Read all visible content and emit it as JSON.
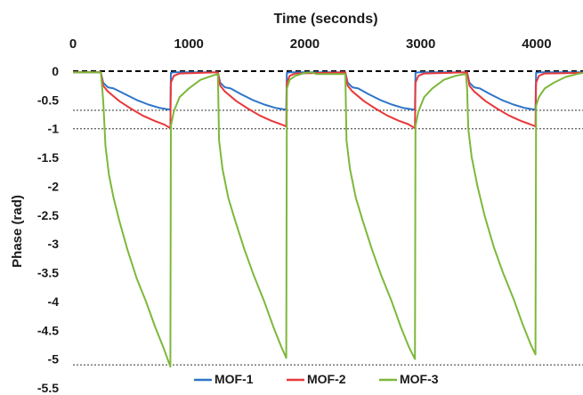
{
  "chart_data": {
    "type": "line",
    "title": "",
    "xlabel": "Time (seconds)",
    "ylabel": "Phase (rad)",
    "xlim": [
      0,
      4400
    ],
    "ylim": [
      -5.5,
      0
    ],
    "x_ticks": [
      0,
      1000,
      2000,
      3000,
      4000
    ],
    "x_tick_labels": [
      "0",
      "1000",
      "2000",
      "3000",
      "4000"
    ],
    "x_axis_position": "top",
    "y_ticks": [
      0,
      -0.5,
      -1,
      -1.5,
      -2,
      -2.5,
      -3,
      -3.5,
      -4,
      -4.5,
      -5,
      -5.5
    ],
    "y_tick_labels": [
      "0",
      "-0.5",
      "-1",
      "-1.5",
      "-2",
      "-2.5",
      "-3",
      "-3.5",
      "-4",
      "-4.5",
      "-5",
      "-5.5"
    ],
    "grid": false,
    "legend_position": "bottom",
    "reference_lines": [
      {
        "y": 0,
        "style": "dashed",
        "color": "#000000"
      },
      {
        "y": -0.68,
        "style": "dotted",
        "color": "#333333"
      },
      {
        "y": -1.0,
        "style": "dotted",
        "color": "#333333"
      },
      {
        "y": -5.1,
        "style": "dotted",
        "color": "#333333"
      }
    ],
    "series": [
      {
        "name": "MOF-1",
        "color": "#2e75c8",
        "points": [
          [
            0,
            -0.02
          ],
          [
            240,
            -0.02
          ],
          [
            260,
            -0.2
          ],
          [
            300,
            -0.28
          ],
          [
            350,
            -0.3
          ],
          [
            450,
            -0.4
          ],
          [
            550,
            -0.5
          ],
          [
            650,
            -0.58
          ],
          [
            750,
            -0.64
          ],
          [
            840,
            -0.67
          ],
          [
            845,
            -0.03
          ],
          [
            870,
            -0.02
          ],
          [
            1250,
            -0.02
          ],
          [
            1270,
            -0.2
          ],
          [
            1310,
            -0.28
          ],
          [
            1360,
            -0.3
          ],
          [
            1450,
            -0.4
          ],
          [
            1550,
            -0.5
          ],
          [
            1650,
            -0.58
          ],
          [
            1750,
            -0.64
          ],
          [
            1840,
            -0.67
          ],
          [
            1845,
            -0.03
          ],
          [
            1870,
            -0.02
          ],
          [
            2350,
            -0.02
          ],
          [
            2370,
            -0.2
          ],
          [
            2410,
            -0.28
          ],
          [
            2460,
            -0.3
          ],
          [
            2550,
            -0.4
          ],
          [
            2650,
            -0.5
          ],
          [
            2750,
            -0.58
          ],
          [
            2850,
            -0.64
          ],
          [
            2950,
            -0.67
          ],
          [
            2955,
            -0.03
          ],
          [
            2980,
            -0.02
          ],
          [
            3400,
            -0.02
          ],
          [
            3420,
            -0.2
          ],
          [
            3460,
            -0.28
          ],
          [
            3510,
            -0.3
          ],
          [
            3600,
            -0.4
          ],
          [
            3700,
            -0.5
          ],
          [
            3800,
            -0.58
          ],
          [
            3900,
            -0.64
          ],
          [
            3990,
            -0.67
          ],
          [
            3995,
            -0.03
          ],
          [
            4020,
            -0.02
          ],
          [
            4400,
            -0.02
          ]
        ]
      },
      {
        "name": "MOF-2",
        "color": "#e8383a",
        "points": [
          [
            0,
            -0.02
          ],
          [
            240,
            -0.02
          ],
          [
            260,
            -0.25
          ],
          [
            300,
            -0.35
          ],
          [
            400,
            -0.52
          ],
          [
            500,
            -0.65
          ],
          [
            600,
            -0.77
          ],
          [
            700,
            -0.86
          ],
          [
            790,
            -0.93
          ],
          [
            840,
            -0.99
          ],
          [
            845,
            -0.2
          ],
          [
            870,
            -0.08
          ],
          [
            920,
            -0.04
          ],
          [
            1250,
            -0.02
          ],
          [
            1270,
            -0.25
          ],
          [
            1310,
            -0.35
          ],
          [
            1410,
            -0.52
          ],
          [
            1510,
            -0.65
          ],
          [
            1610,
            -0.77
          ],
          [
            1710,
            -0.86
          ],
          [
            1790,
            -0.92
          ],
          [
            1840,
            -0.96
          ],
          [
            1845,
            -0.2
          ],
          [
            1870,
            -0.08
          ],
          [
            1920,
            -0.04
          ],
          [
            2350,
            -0.02
          ],
          [
            2370,
            -0.25
          ],
          [
            2410,
            -0.35
          ],
          [
            2510,
            -0.52
          ],
          [
            2610,
            -0.65
          ],
          [
            2710,
            -0.77
          ],
          [
            2810,
            -0.86
          ],
          [
            2890,
            -0.92
          ],
          [
            2950,
            -0.99
          ],
          [
            2955,
            -0.2
          ],
          [
            2980,
            -0.08
          ],
          [
            3030,
            -0.04
          ],
          [
            3400,
            -0.02
          ],
          [
            3420,
            -0.25
          ],
          [
            3460,
            -0.35
          ],
          [
            3560,
            -0.52
          ],
          [
            3660,
            -0.65
          ],
          [
            3760,
            -0.77
          ],
          [
            3860,
            -0.86
          ],
          [
            3940,
            -0.92
          ],
          [
            3990,
            -0.96
          ],
          [
            3995,
            -0.2
          ],
          [
            4020,
            -0.08
          ],
          [
            4070,
            -0.04
          ],
          [
            4400,
            -0.03
          ]
        ]
      },
      {
        "name": "MOF-3",
        "color": "#7db83a",
        "points": [
          [
            0,
            -0.02
          ],
          [
            240,
            -0.02
          ],
          [
            260,
            -0.5
          ],
          [
            280,
            -1.3
          ],
          [
            310,
            -1.8
          ],
          [
            350,
            -2.2
          ],
          [
            400,
            -2.6
          ],
          [
            470,
            -3.1
          ],
          [
            550,
            -3.6
          ],
          [
            630,
            -4.0
          ],
          [
            710,
            -4.45
          ],
          [
            780,
            -4.8
          ],
          [
            840,
            -5.13
          ],
          [
            845,
            -0.95
          ],
          [
            870,
            -0.7
          ],
          [
            920,
            -0.45
          ],
          [
            1000,
            -0.3
          ],
          [
            1100,
            -0.15
          ],
          [
            1200,
            -0.08
          ],
          [
            1250,
            -0.05
          ],
          [
            1260,
            -1.2
          ],
          [
            1290,
            -1.7
          ],
          [
            1340,
            -2.2
          ],
          [
            1400,
            -2.6
          ],
          [
            1480,
            -3.1
          ],
          [
            1560,
            -3.55
          ],
          [
            1650,
            -4.0
          ],
          [
            1730,
            -4.45
          ],
          [
            1800,
            -4.8
          ],
          [
            1840,
            -4.98
          ],
          [
            1845,
            -0.3
          ],
          [
            1870,
            -0.15
          ],
          [
            1920,
            -0.08
          ],
          [
            2000,
            -0.03
          ],
          [
            2060,
            -0.02
          ],
          [
            2100,
            -0.05
          ],
          [
            2350,
            -0.05
          ],
          [
            2360,
            -1.2
          ],
          [
            2390,
            -1.7
          ],
          [
            2440,
            -2.2
          ],
          [
            2500,
            -2.6
          ],
          [
            2580,
            -3.1
          ],
          [
            2660,
            -3.55
          ],
          [
            2750,
            -4.0
          ],
          [
            2830,
            -4.45
          ],
          [
            2900,
            -4.8
          ],
          [
            2950,
            -5.0
          ],
          [
            2955,
            -0.95
          ],
          [
            2980,
            -0.7
          ],
          [
            3030,
            -0.45
          ],
          [
            3100,
            -0.3
          ],
          [
            3200,
            -0.15
          ],
          [
            3300,
            -0.08
          ],
          [
            3390,
            -0.05
          ],
          [
            3400,
            -0.3
          ],
          [
            3410,
            -1.0
          ],
          [
            3440,
            -1.5
          ],
          [
            3490,
            -2.0
          ],
          [
            3550,
            -2.5
          ],
          [
            3630,
            -3.05
          ],
          [
            3710,
            -3.5
          ],
          [
            3800,
            -3.95
          ],
          [
            3880,
            -4.4
          ],
          [
            3950,
            -4.75
          ],
          [
            3990,
            -4.92
          ],
          [
            3995,
            -0.6
          ],
          [
            4020,
            -0.45
          ],
          [
            4070,
            -0.3
          ],
          [
            4150,
            -0.2
          ],
          [
            4250,
            -0.1
          ],
          [
            4350,
            -0.05
          ],
          [
            4400,
            -0.03
          ]
        ]
      }
    ]
  }
}
